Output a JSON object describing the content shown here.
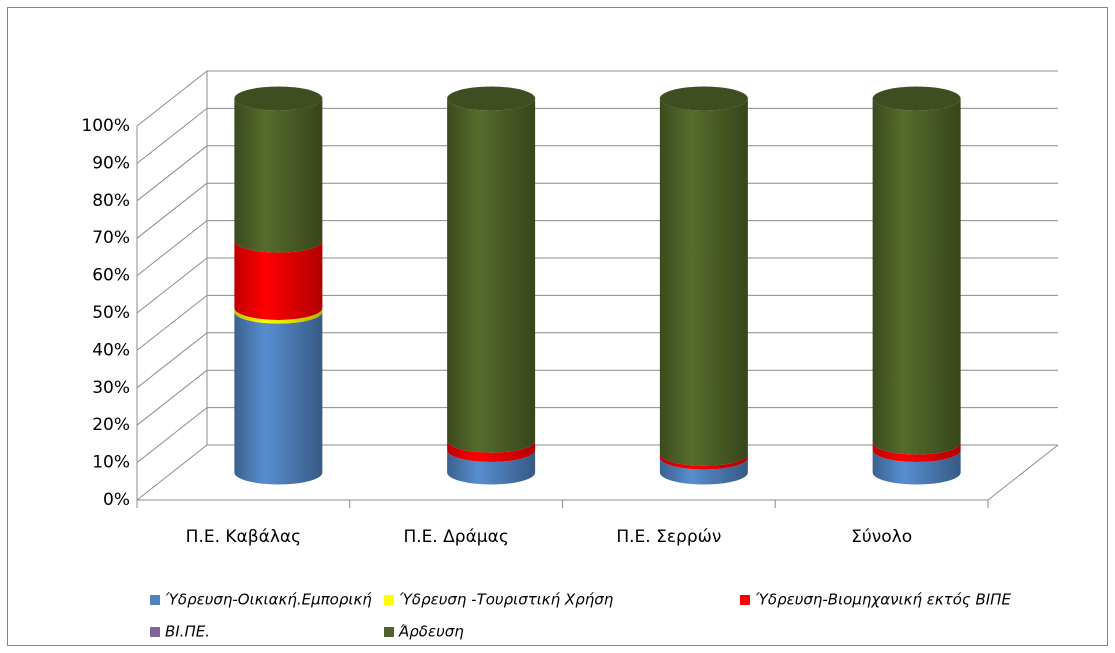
{
  "chart_data": {
    "type": "bar3d_stacked_cylinder",
    "categories": [
      "Π.Ε. Καβάλας",
      "Π.Ε. Δράμας",
      "Π.Ε. Σερρών",
      "Σύνολο"
    ],
    "series": [
      {
        "name": "Ύδρευση-Οικιακή.Εμπορική",
        "color": "#4f81bd",
        "values": [
          43,
          6,
          4,
          6
        ]
      },
      {
        "name": "Ύδρευση -Τουριστική Χρήση",
        "color": "#ffff00",
        "values": [
          1,
          0,
          0,
          0
        ]
      },
      {
        "name": "Ύδρευση-Βιομηχανική εκτός ΒΙΠΕ",
        "color": "#ff0000",
        "values": [
          18,
          2.5,
          1,
          2
        ]
      },
      {
        "name": "ΒΙ.ΠΕ.",
        "color": "#8064a2",
        "values": [
          0,
          0,
          0,
          0
        ]
      },
      {
        "name": "Άρδευση",
        "color": "#4f6228",
        "values": [
          38,
          91.5,
          95,
          92
        ]
      }
    ],
    "ylim": [
      0,
      100
    ],
    "yticks": [
      {
        "value": 0,
        "label": "0%"
      },
      {
        "value": 10,
        "label": "10%"
      },
      {
        "value": 20,
        "label": "20%"
      },
      {
        "value": 30,
        "label": "30%"
      },
      {
        "value": 40,
        "label": "40%"
      },
      {
        "value": 50,
        "label": "50%"
      },
      {
        "value": 60,
        "label": "60%"
      },
      {
        "value": 70,
        "label": "70%"
      },
      {
        "value": 80,
        "label": "80%"
      },
      {
        "value": 90,
        "label": "90%"
      },
      {
        "value": 100,
        "label": "100%"
      }
    ],
    "grid": true
  }
}
